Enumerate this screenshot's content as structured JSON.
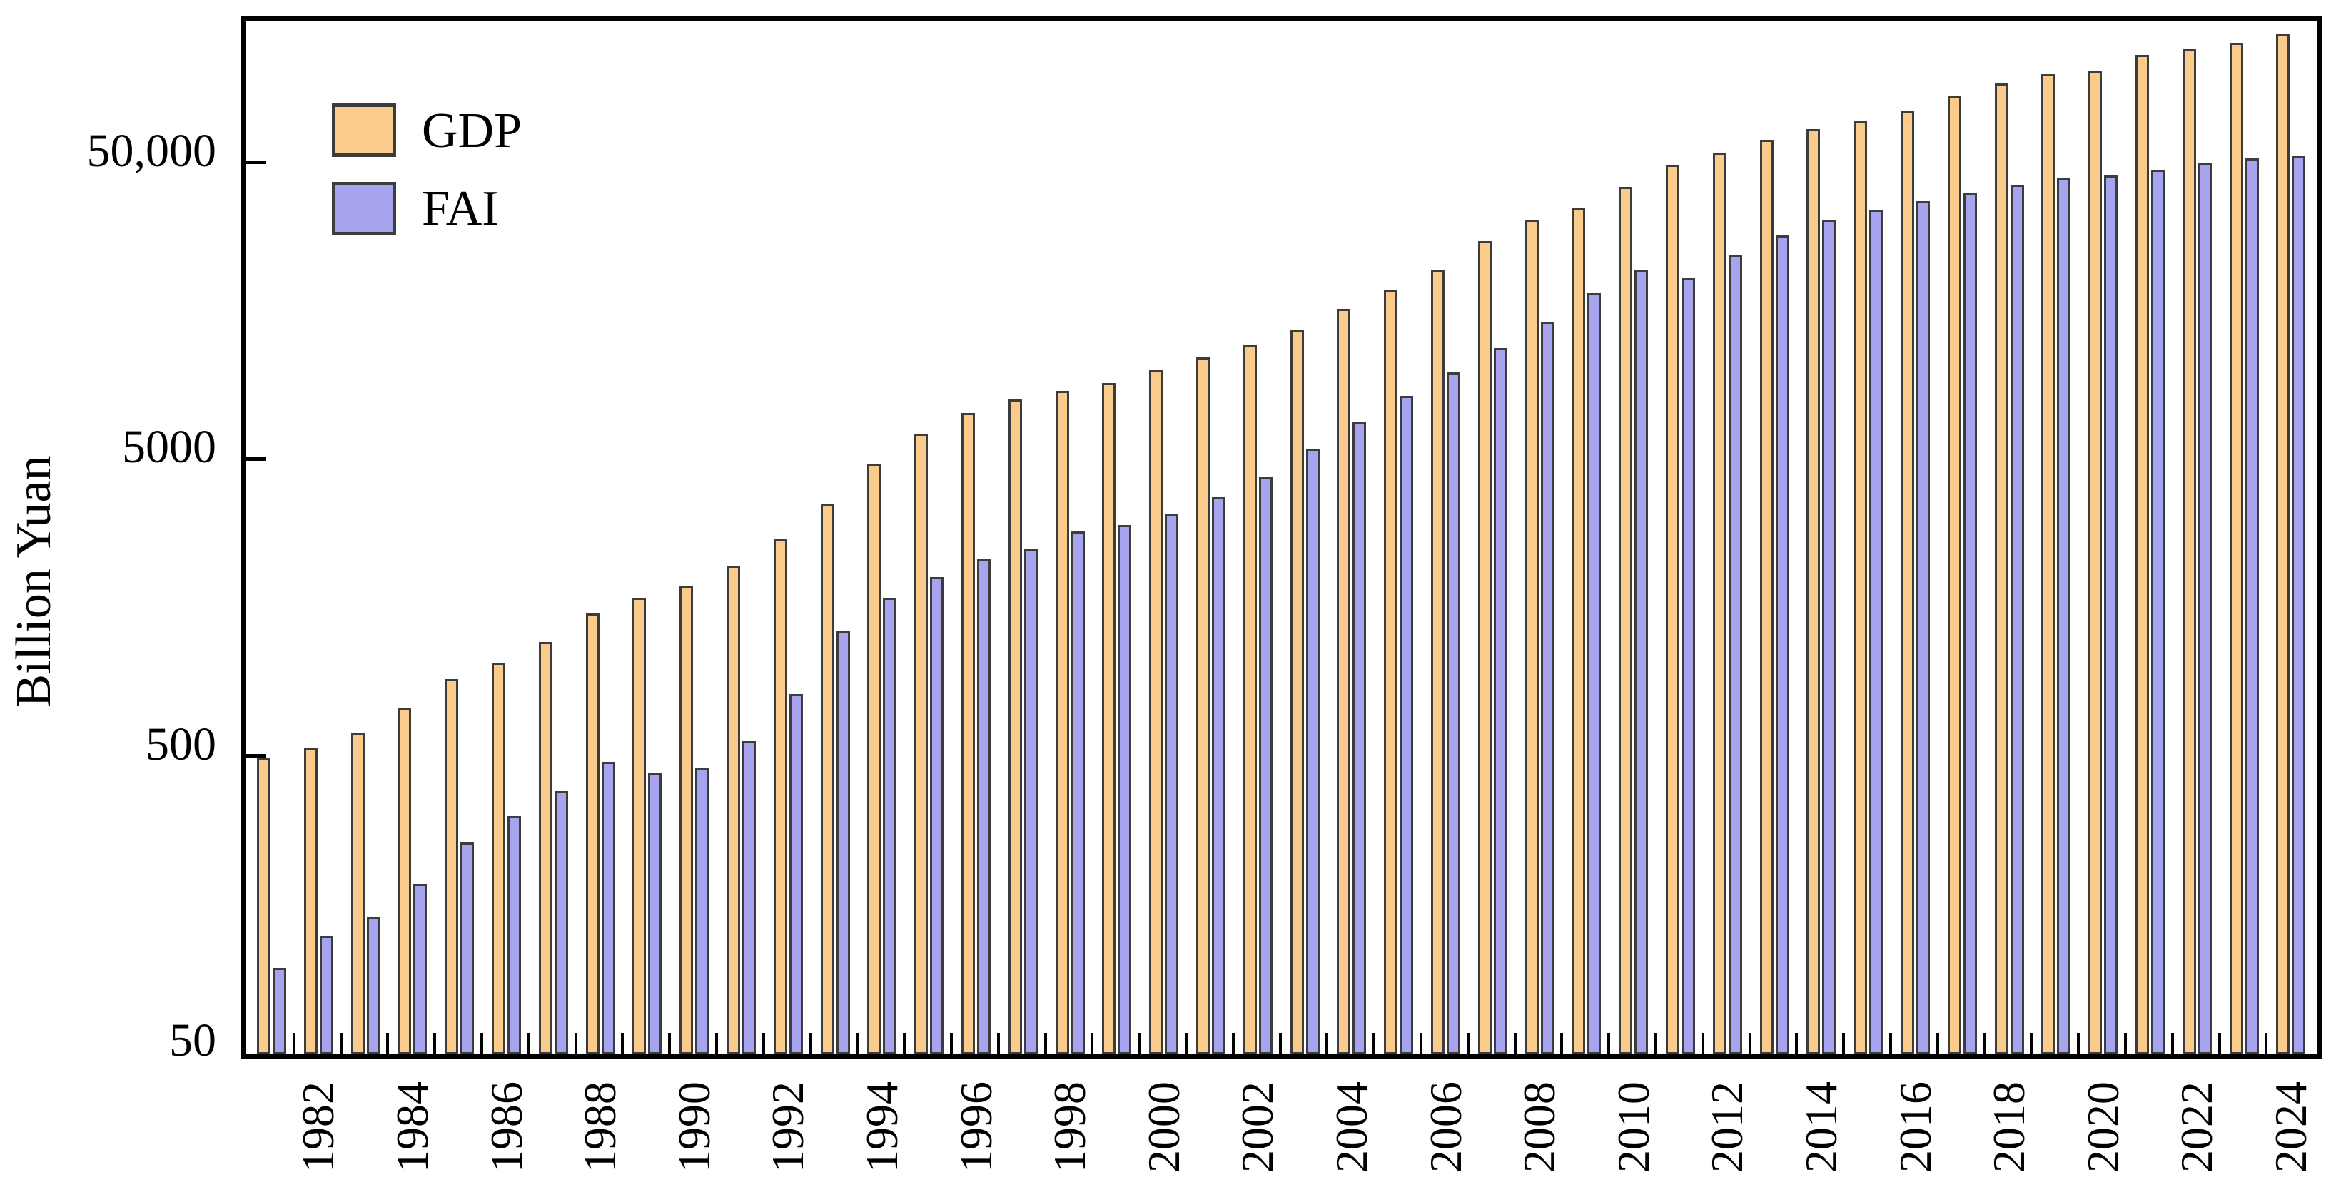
{
  "y_axis": {
    "label": "Billion Yuan",
    "tick_labels": [
      "50,000",
      "5000",
      "500",
      "50"
    ],
    "tick_values": [
      50000,
      5000,
      500,
      50
    ]
  },
  "x_axis": {
    "tick_labels": [
      "1982",
      "1984",
      "1986",
      "1988",
      "1990",
      "1992",
      "1994",
      "1996",
      "1998",
      "2000",
      "2002",
      "2004",
      "2006",
      "2008",
      "2010",
      "2012",
      "2014",
      "2016",
      "2018",
      "2020",
      "2022",
      "2024"
    ]
  },
  "legend": {
    "items": [
      {
        "label": "GDP",
        "color": "#FACB8B"
      },
      {
        "label": "FAI",
        "color": "#A7A4EF"
      }
    ]
  },
  "colors": {
    "gdp_fill": "#FACB8B",
    "fai_fill": "#A7A4EF",
    "bar_edge": "#3C3C3C",
    "axis": "#000000",
    "background": "#ffffff"
  },
  "chart_data": {
    "type": "bar",
    "title": "",
    "xlabel": "",
    "ylabel": "Billion Yuan",
    "yscale": "log",
    "ylim": [
      50,
      150000
    ],
    "grid": false,
    "legend_position": "upper-left",
    "categories": [
      1981,
      1982,
      1983,
      1984,
      1985,
      1986,
      1987,
      1988,
      1989,
      1990,
      1991,
      1992,
      1993,
      1994,
      1995,
      1996,
      1997,
      1998,
      1999,
      2000,
      2001,
      2002,
      2003,
      2004,
      2005,
      2006,
      2007,
      2008,
      2009,
      2010,
      2011,
      2012,
      2013,
      2014,
      2015,
      2016,
      2017,
      2018,
      2019,
      2020,
      2021,
      2022,
      2023,
      2024
    ],
    "series": [
      {
        "name": "GDP",
        "values": [
          490,
          532,
          596,
          721,
          902,
          1028,
          1206,
          1504,
          1699,
          1867,
          2178,
          2692,
          3533,
          4820,
          6079,
          7118,
          7897,
          8440,
          8968,
          9921,
          10966,
          12033,
          13582,
          15988,
          18494,
          21732,
          27009,
          31925,
          34852,
          41212,
          48794,
          53858,
          59296,
          64356,
          68886,
          74640,
          83204,
          91928,
          98652,
          101357,
          114924,
          120472,
          126058,
          134908
        ]
      },
      {
        "name": "FAI",
        "values": [
          96,
          123,
          143,
          185,
          254,
          312,
          380,
          476,
          438,
          453,
          560,
          806,
          1310,
          1700,
          2000,
          2300,
          2490,
          2840,
          2990,
          3270,
          3710,
          4360,
          5400,
          6630,
          8140,
          9750,
          11800,
          14500,
          18100,
          21700,
          20300,
          24300,
          28300,
          31900,
          34500,
          36900,
          39400,
          41800,
          44100,
          44900,
          47000,
          49400,
          51400,
          52300
        ]
      }
    ]
  }
}
